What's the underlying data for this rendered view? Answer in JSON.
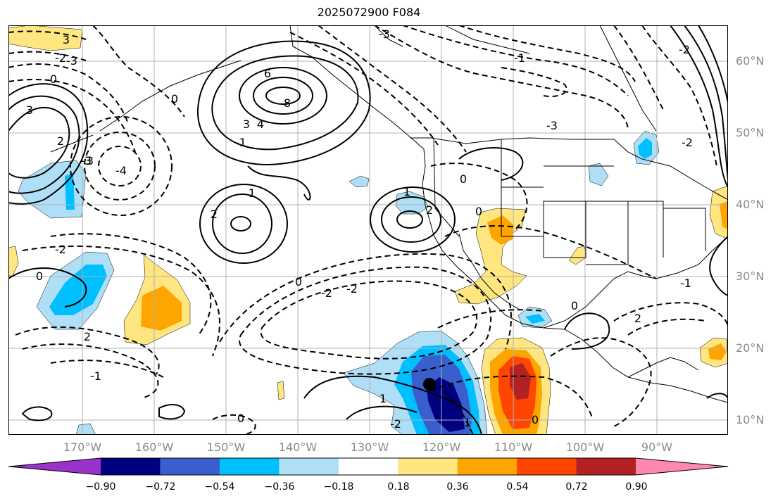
{
  "title": "2025072900 F084",
  "lat_labels": [
    "60°N",
    "50°N",
    "40°N",
    "30°N",
    "20°N",
    "10°N"
  ],
  "lon_labels": [
    "170°W",
    "160°W",
    "150°W",
    "140°W",
    "130°W",
    "120°W",
    "110°W",
    "100°W",
    "90°W"
  ],
  "colorbar": {
    "colors": [
      "#9933cc",
      "#000080",
      "#3a5fcd",
      "#00bfff",
      "#aedff7",
      "#ffffff",
      "#ffe680",
      "#ffa500",
      "#ff4500",
      "#b22222",
      "#ff88b0"
    ],
    "tick_labels": [
      "−0.90",
      "−0.72",
      "−0.54",
      "−0.36",
      "−0.18",
      "0.18",
      "0.36",
      "0.54",
      "0.72",
      "0.90"
    ]
  },
  "contour_labels": [
    "3",
    "0",
    "3",
    "-3",
    "6",
    "8",
    "4",
    "3",
    "-1",
    "-3",
    "-2",
    "-3",
    "0",
    "3",
    "2",
    "-4",
    "-2",
    "0",
    "1",
    "2",
    "1",
    "2",
    "1",
    "1",
    "-2",
    "0",
    "-2",
    "-2",
    "-1",
    "2",
    "0",
    "-1",
    "0",
    "-3",
    "0",
    "0",
    "2",
    "-2",
    "-2",
    "0",
    "-1"
  ]
}
